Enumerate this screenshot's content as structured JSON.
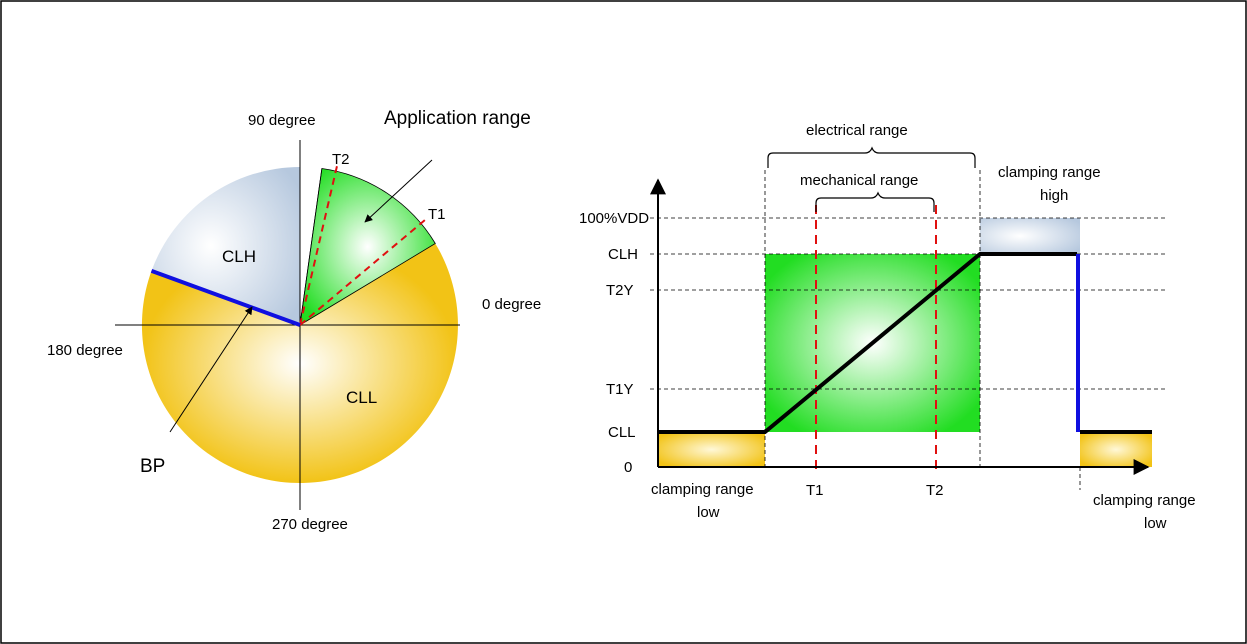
{
  "pie": {
    "label_90": "90 degree",
    "label_0": "0 degree",
    "label_180": "180 degree",
    "label_270": "270 degree",
    "application_range": "Application range",
    "t1": "T1",
    "t2": "T2",
    "clh": "CLH",
    "cll": "CLL",
    "bp": "BP"
  },
  "plot": {
    "electrical_range": "electrical range",
    "mechanical_range": "mechanical range",
    "clamping_high_line1": "clamping range",
    "clamping_high_line2": "high",
    "clamping_low_left_line1": "clamping range",
    "clamping_low_left_line2": "low",
    "clamping_low_right_line1": "clamping range",
    "clamping_low_right_line2": "low",
    "y_labels": {
      "vdd": "100%VDD",
      "clh": "CLH",
      "t2y": "T2Y",
      "t1y": "T1Y",
      "cll": "CLL",
      "zero": "0"
    },
    "x_labels": {
      "t1": "T1",
      "t2": "T2"
    }
  },
  "colors": {
    "clh_fill": "#c9d6e6",
    "cll_fill": "#f2c316",
    "app_fill": "#22dd22",
    "bp_line": "#1010e0",
    "dashed_red": "#e01010",
    "curve": "#000000"
  }
}
